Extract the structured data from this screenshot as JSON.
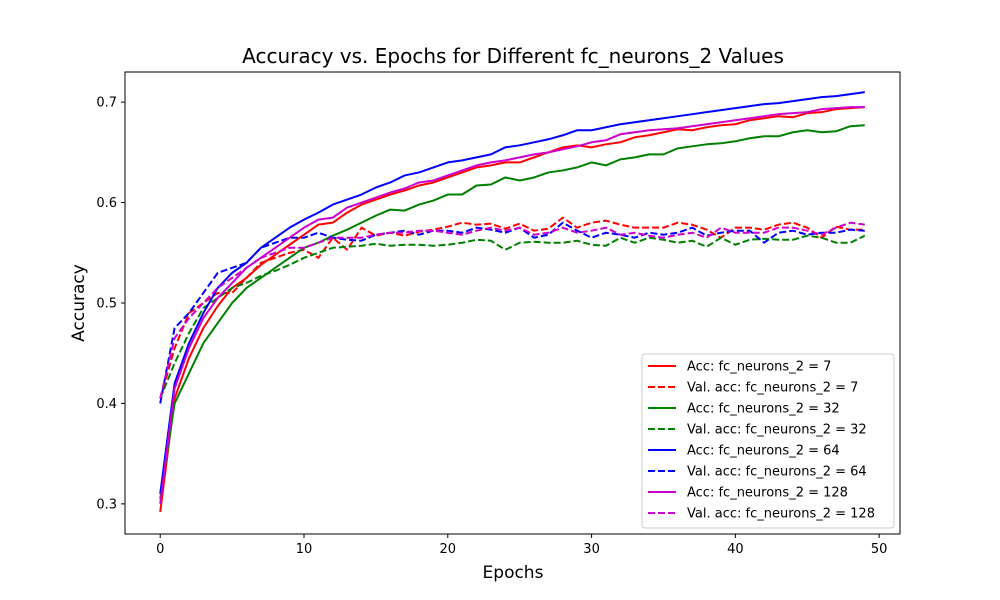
{
  "chart_data": {
    "type": "line",
    "title": "Accuracy vs. Epochs for Different fc_neurons_2 Values",
    "xlabel": "Epochs",
    "ylabel": "Accuracy",
    "xlim": [
      -2.45,
      51.45
    ],
    "ylim": [
      0.27,
      0.73
    ],
    "xticks": [
      0,
      10,
      20,
      30,
      40,
      50
    ],
    "yticks": [
      0.3,
      0.4,
      0.5,
      0.6,
      0.7
    ],
    "ytick_labels": [
      "0.3",
      "0.4",
      "0.5",
      "0.6",
      "0.7"
    ],
    "grid": false,
    "legend_position": "lower-right",
    "series": [
      {
        "name": "Acc: fc_neurons_2 = 7",
        "color": "#ff0000",
        "style": "solid",
        "values": [
          0.292,
          0.405,
          0.445,
          0.475,
          0.497,
          0.515,
          0.525,
          0.538,
          0.548,
          0.558,
          0.568,
          0.578,
          0.58,
          0.59,
          0.598,
          0.603,
          0.608,
          0.612,
          0.617,
          0.62,
          0.625,
          0.63,
          0.635,
          0.637,
          0.64,
          0.64,
          0.645,
          0.65,
          0.655,
          0.657,
          0.655,
          0.658,
          0.66,
          0.665,
          0.667,
          0.67,
          0.673,
          0.672,
          0.675,
          0.677,
          0.678,
          0.682,
          0.684,
          0.686,
          0.685,
          0.689,
          0.69,
          0.693,
          0.694,
          0.695
        ]
      },
      {
        "name": "Val. acc: fc_neurons_2 = 7",
        "color": "#ff0000",
        "style": "dashed",
        "values": [
          0.405,
          0.455,
          0.49,
          0.5,
          0.51,
          0.51,
          0.525,
          0.54,
          0.545,
          0.55,
          0.553,
          0.545,
          0.565,
          0.553,
          0.575,
          0.567,
          0.57,
          0.567,
          0.571,
          0.573,
          0.576,
          0.58,
          0.578,
          0.579,
          0.574,
          0.579,
          0.572,
          0.574,
          0.585,
          0.575,
          0.58,
          0.582,
          0.578,
          0.575,
          0.575,
          0.575,
          0.58,
          0.578,
          0.573,
          0.565,
          0.575,
          0.575,
          0.573,
          0.578,
          0.58,
          0.575,
          0.565,
          0.576,
          0.573,
          0.573
        ]
      },
      {
        "name": "Acc: fc_neurons_2 = 32",
        "color": "#008000",
        "style": "solid",
        "values": [
          0.305,
          0.4,
          0.43,
          0.46,
          0.48,
          0.5,
          0.515,
          0.525,
          0.535,
          0.545,
          0.555,
          0.56,
          0.567,
          0.573,
          0.58,
          0.587,
          0.593,
          0.592,
          0.598,
          0.602,
          0.608,
          0.608,
          0.617,
          0.618,
          0.625,
          0.622,
          0.625,
          0.63,
          0.632,
          0.635,
          0.64,
          0.637,
          0.643,
          0.645,
          0.648,
          0.648,
          0.654,
          0.656,
          0.658,
          0.659,
          0.661,
          0.664,
          0.666,
          0.666,
          0.67,
          0.672,
          0.67,
          0.671,
          0.676,
          0.677
        ]
      },
      {
        "name": "Val. acc: fc_neurons_2 = 32",
        "color": "#008000",
        "style": "dashed",
        "values": [
          0.405,
          0.44,
          0.47,
          0.495,
          0.505,
          0.515,
          0.52,
          0.527,
          0.532,
          0.538,
          0.545,
          0.55,
          0.555,
          0.556,
          0.557,
          0.559,
          0.557,
          0.558,
          0.558,
          0.557,
          0.558,
          0.56,
          0.563,
          0.562,
          0.553,
          0.56,
          0.561,
          0.56,
          0.56,
          0.562,
          0.558,
          0.557,
          0.565,
          0.56,
          0.565,
          0.563,
          0.56,
          0.562,
          0.556,
          0.565,
          0.558,
          0.563,
          0.564,
          0.563,
          0.563,
          0.567,
          0.565,
          0.56,
          0.56,
          0.567
        ]
      },
      {
        "name": "Acc: fc_neurons_2 = 64",
        "color": "#0000ff",
        "style": "solid",
        "values": [
          0.31,
          0.42,
          0.46,
          0.49,
          0.515,
          0.53,
          0.54,
          0.555,
          0.565,
          0.575,
          0.583,
          0.59,
          0.598,
          0.603,
          0.608,
          0.615,
          0.62,
          0.627,
          0.63,
          0.635,
          0.64,
          0.642,
          0.645,
          0.648,
          0.655,
          0.657,
          0.66,
          0.663,
          0.667,
          0.672,
          0.672,
          0.675,
          0.678,
          0.68,
          0.682,
          0.684,
          0.686,
          0.688,
          0.69,
          0.692,
          0.694,
          0.696,
          0.698,
          0.699,
          0.701,
          0.703,
          0.705,
          0.706,
          0.708,
          0.71
        ]
      },
      {
        "name": "Val. acc: fc_neurons_2 = 64",
        "color": "#0000ff",
        "style": "dashed",
        "values": [
          0.4,
          0.475,
          0.49,
          0.51,
          0.53,
          0.535,
          0.54,
          0.555,
          0.56,
          0.565,
          0.565,
          0.57,
          0.565,
          0.563,
          0.562,
          0.568,
          0.57,
          0.572,
          0.568,
          0.572,
          0.572,
          0.57,
          0.575,
          0.573,
          0.57,
          0.575,
          0.565,
          0.568,
          0.58,
          0.572,
          0.565,
          0.57,
          0.568,
          0.565,
          0.57,
          0.568,
          0.57,
          0.575,
          0.567,
          0.57,
          0.572,
          0.572,
          0.56,
          0.57,
          0.572,
          0.568,
          0.57,
          0.57,
          0.573,
          0.572
        ]
      },
      {
        "name": "Acc: fc_neurons_2 = 128",
        "color": "#cc00cc",
        "style": "solid",
        "values": [
          0.3,
          0.415,
          0.455,
          0.485,
          0.505,
          0.52,
          0.535,
          0.545,
          0.555,
          0.565,
          0.575,
          0.583,
          0.585,
          0.595,
          0.6,
          0.605,
          0.61,
          0.614,
          0.62,
          0.622,
          0.627,
          0.632,
          0.637,
          0.64,
          0.642,
          0.645,
          0.648,
          0.65,
          0.653,
          0.656,
          0.66,
          0.662,
          0.668,
          0.67,
          0.672,
          0.673,
          0.674,
          0.676,
          0.678,
          0.68,
          0.682,
          0.684,
          0.686,
          0.688,
          0.689,
          0.69,
          0.693,
          0.694,
          0.695,
          0.695
        ]
      },
      {
        "name": "Val. acc: fc_neurons_2 = 128",
        "color": "#cc00cc",
        "style": "dashed",
        "values": [
          0.405,
          0.465,
          0.485,
          0.5,
          0.515,
          0.525,
          0.535,
          0.545,
          0.55,
          0.555,
          0.555,
          0.56,
          0.565,
          0.565,
          0.565,
          0.568,
          0.57,
          0.57,
          0.572,
          0.572,
          0.57,
          0.568,
          0.572,
          0.575,
          0.572,
          0.575,
          0.568,
          0.57,
          0.575,
          0.57,
          0.572,
          0.575,
          0.568,
          0.57,
          0.567,
          0.565,
          0.568,
          0.57,
          0.565,
          0.575,
          0.57,
          0.57,
          0.57,
          0.575,
          0.575,
          0.572,
          0.568,
          0.575,
          0.58,
          0.578
        ]
      }
    ]
  }
}
